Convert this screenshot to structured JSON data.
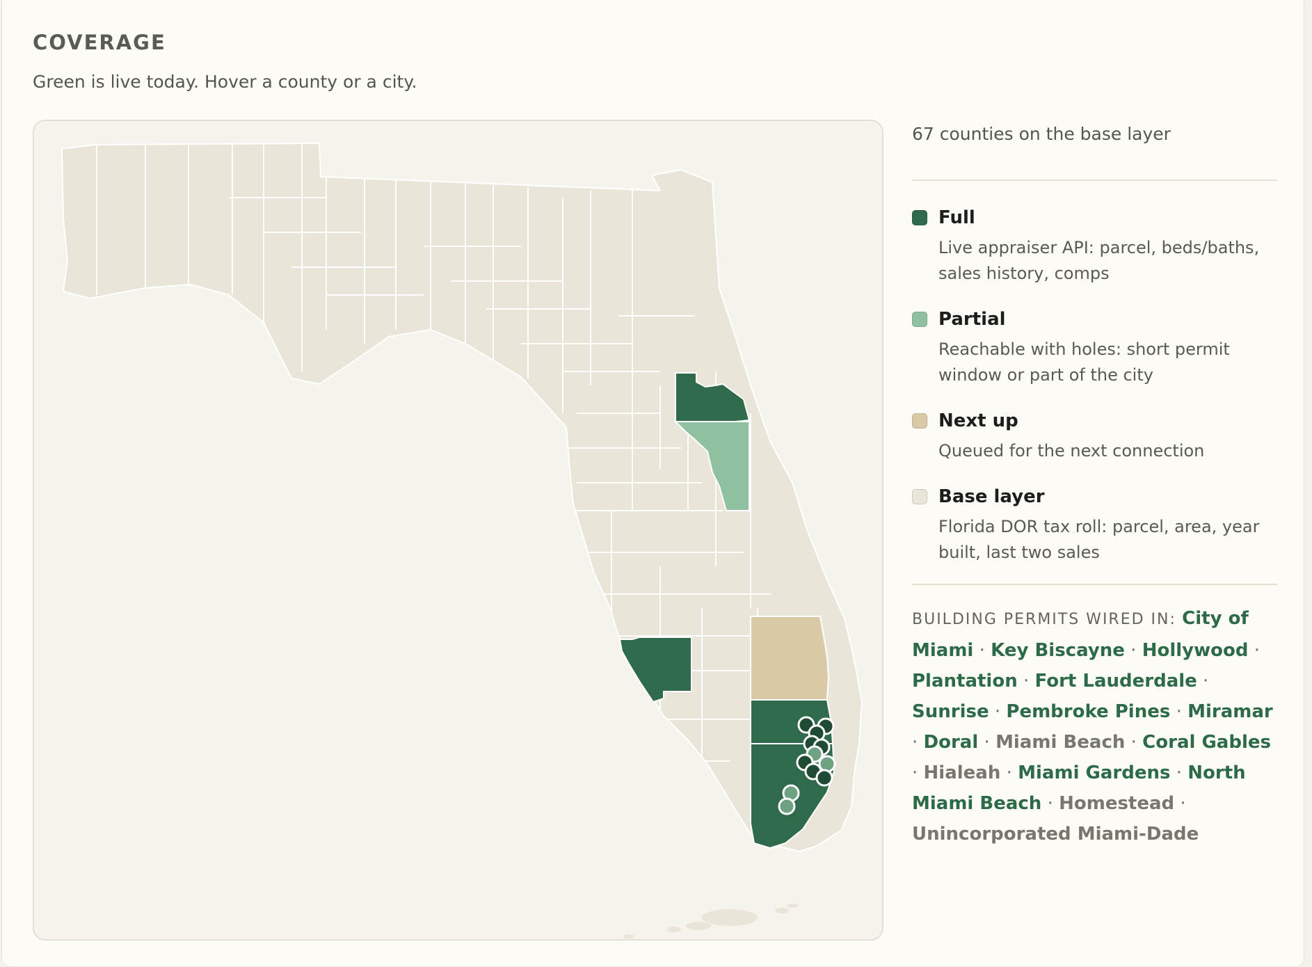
{
  "header": {
    "title": "COVERAGE",
    "subtitle": "Green is live today. Hover a county or a city."
  },
  "colors": {
    "full": "#2f6b4b",
    "partial": "#8fc1a0",
    "next_up": "#d9c9a7",
    "base": "#e9e5d9",
    "county_border": "#ffffff",
    "city_dot_dark": "#1f4a33",
    "city_dot_light": "#6fa283"
  },
  "sidebar": {
    "base_count": "67 counties on the base layer",
    "legend": [
      {
        "key": "full",
        "title": "Full",
        "desc_line1": "Live appraiser API: parcel, beds/baths,",
        "desc_line2": "sales history, comps",
        "color": "#2f6b4b"
      },
      {
        "key": "partial",
        "title": "Partial",
        "desc_line1": "Reachable with holes: short permit",
        "desc_line2": "window or part of the city",
        "color": "#8fc1a0"
      },
      {
        "key": "next_up",
        "title": "Next up",
        "desc_line1": "Queued for the next connection",
        "desc_line2": "",
        "color": "#d9c9a7"
      },
      {
        "key": "base",
        "title": "Base layer",
        "desc_line1": "Florida DOR tax roll: parcel, area, year",
        "desc_line2": "built, last two sales",
        "color": "#e9e5d9"
      }
    ],
    "permits": {
      "label": "BUILDING PERMITS WIRED IN:",
      "cities": [
        {
          "name": "City of Miami",
          "status": "wired"
        },
        {
          "name": "Key Biscayne",
          "status": "wired"
        },
        {
          "name": "Hollywood",
          "status": "wired"
        },
        {
          "name": "Plantation",
          "status": "wired"
        },
        {
          "name": "Fort Lauderdale",
          "status": "wired"
        },
        {
          "name": "Sunrise",
          "status": "wired"
        },
        {
          "name": "Pembroke Pines",
          "status": "wired"
        },
        {
          "name": "Miramar",
          "status": "wired"
        },
        {
          "name": "Doral",
          "status": "wired"
        },
        {
          "name": "Miami Beach",
          "status": "pending"
        },
        {
          "name": "Coral Gables",
          "status": "wired"
        },
        {
          "name": "Hialeah",
          "status": "pending"
        },
        {
          "name": "Miami Gardens",
          "status": "wired"
        },
        {
          "name": "North Miami Beach",
          "status": "wired"
        },
        {
          "name": "Homestead",
          "status": "pending"
        },
        {
          "name": "Unincorporated Miami-Dade",
          "status": "pending"
        }
      ]
    }
  }
}
